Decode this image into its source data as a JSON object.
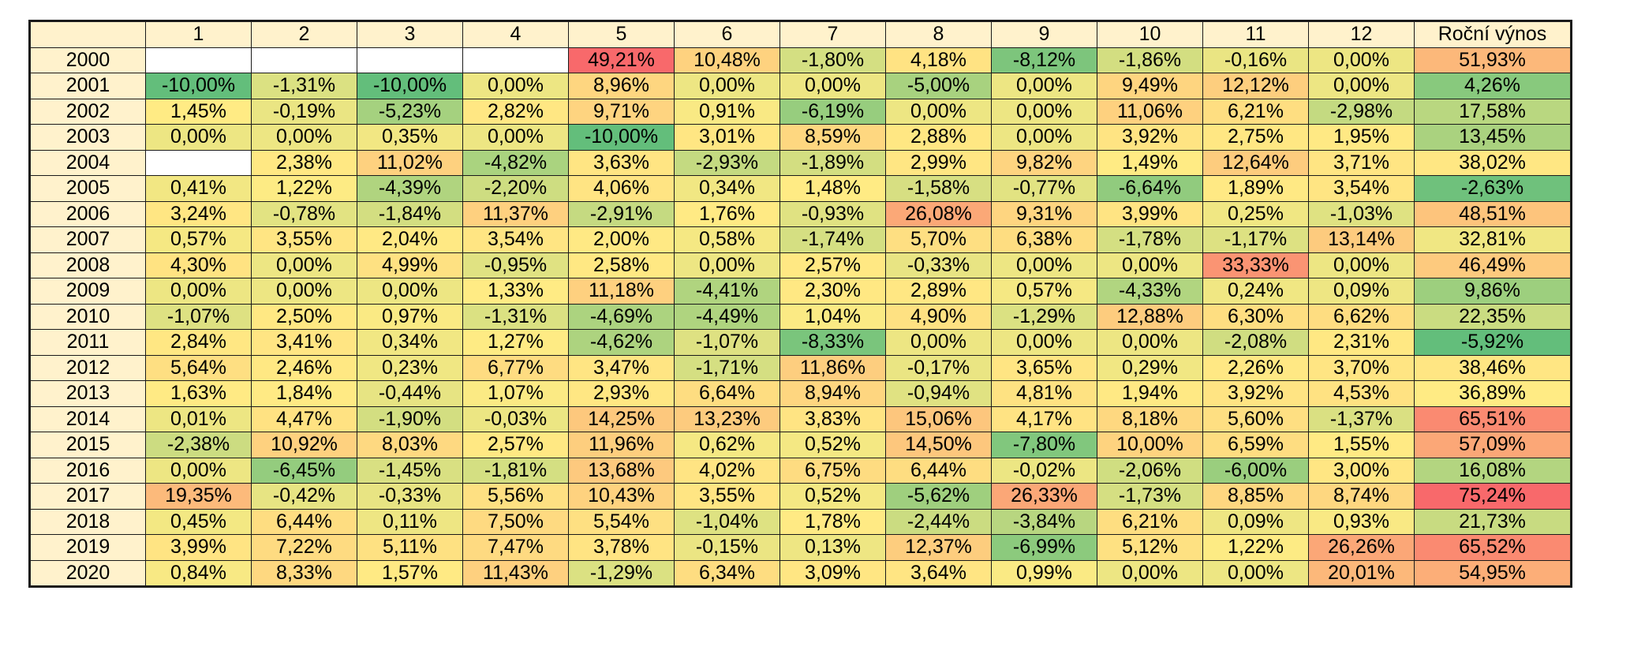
{
  "chart_data": {
    "type": "heatmap",
    "columns": [
      "",
      "1",
      "2",
      "3",
      "4",
      "5",
      "6",
      "7",
      "8",
      "9",
      "10",
      "11",
      "12",
      "Roční výnos"
    ],
    "rows": [
      {
        "year": "2000",
        "values": [
          null,
          null,
          null,
          null,
          "49,21%",
          "10,48%",
          "-1,80%",
          "4,18%",
          "-8,12%",
          "-1,86%",
          "-0,16%",
          "0,00%"
        ],
        "total": "51,93%"
      },
      {
        "year": "2001",
        "values": [
          "-10,00%",
          "-1,31%",
          "-10,00%",
          "0,00%",
          "8,96%",
          "0,00%",
          "0,00%",
          "-5,00%",
          "0,00%",
          "9,49%",
          "12,12%",
          "0,00%"
        ],
        "total": "4,26%"
      },
      {
        "year": "2002",
        "values": [
          "1,45%",
          "-0,19%",
          "-5,23%",
          "2,82%",
          "9,71%",
          "0,91%",
          "-6,19%",
          "0,00%",
          "0,00%",
          "11,06%",
          "6,21%",
          "-2,98%"
        ],
        "total": "17,58%"
      },
      {
        "year": "2003",
        "values": [
          "0,00%",
          "0,00%",
          "0,35%",
          "0,00%",
          "-10,00%",
          "3,01%",
          "8,59%",
          "2,88%",
          "0,00%",
          "3,92%",
          "2,75%",
          "1,95%"
        ],
        "total": "13,45%"
      },
      {
        "year": "2004",
        "values": [
          null,
          "2,38%",
          "11,02%",
          "-4,82%",
          "3,63%",
          "-2,93%",
          "-1,89%",
          "2,99%",
          "9,82%",
          "1,49%",
          "12,64%",
          "3,71%"
        ],
        "total": "38,02%"
      },
      {
        "year": "2005",
        "values": [
          "0,41%",
          "1,22%",
          "-4,39%",
          "-2,20%",
          "4,06%",
          "0,34%",
          "1,48%",
          "-1,58%",
          "-0,77%",
          "-6,64%",
          "1,89%",
          "3,54%"
        ],
        "total": "-2,63%"
      },
      {
        "year": "2006",
        "values": [
          "3,24%",
          "-0,78%",
          "-1,84%",
          "11,37%",
          "-2,91%",
          "1,76%",
          "-0,93%",
          "26,08%",
          "9,31%",
          "3,99%",
          "0,25%",
          "-1,03%"
        ],
        "total": "48,51%"
      },
      {
        "year": "2007",
        "values": [
          "0,57%",
          "3,55%",
          "2,04%",
          "3,54%",
          "2,00%",
          "0,58%",
          "-1,74%",
          "5,70%",
          "6,38%",
          "-1,78%",
          "-1,17%",
          "13,14%"
        ],
        "total": "32,81%"
      },
      {
        "year": "2008",
        "values": [
          "4,30%",
          "0,00%",
          "4,99%",
          "-0,95%",
          "2,58%",
          "0,00%",
          "2,57%",
          "-0,33%",
          "0,00%",
          "0,00%",
          "33,33%",
          "0,00%"
        ],
        "total": "46,49%"
      },
      {
        "year": "2009",
        "values": [
          "0,00%",
          "0,00%",
          "0,00%",
          "1,33%",
          "11,18%",
          "-4,41%",
          "2,30%",
          "2,89%",
          "0,57%",
          "-4,33%",
          "0,24%",
          "0,09%"
        ],
        "total": "9,86%"
      },
      {
        "year": "2010",
        "values": [
          "-1,07%",
          "2,50%",
          "0,97%",
          "-1,31%",
          "-4,69%",
          "-4,49%",
          "1,04%",
          "4,90%",
          "-1,29%",
          "12,88%",
          "6,30%",
          "6,62%"
        ],
        "total": "22,35%"
      },
      {
        "year": "2011",
        "values": [
          "2,84%",
          "3,41%",
          "0,34%",
          "1,27%",
          "-4,62%",
          "-1,07%",
          "-8,33%",
          "0,00%",
          "0,00%",
          "0,00%",
          "-2,08%",
          "2,31%"
        ],
        "total": "-5,92%"
      },
      {
        "year": "2012",
        "values": [
          "5,64%",
          "2,46%",
          "0,23%",
          "6,77%",
          "3,47%",
          "-1,71%",
          "11,86%",
          "-0,17%",
          "3,65%",
          "0,29%",
          "2,26%",
          "3,70%"
        ],
        "total": "38,46%"
      },
      {
        "year": "2013",
        "values": [
          "1,63%",
          "1,84%",
          "-0,44%",
          "1,07%",
          "2,93%",
          "6,64%",
          "8,94%",
          "-0,94%",
          "4,81%",
          "1,94%",
          "3,92%",
          "4,53%"
        ],
        "total": "36,89%"
      },
      {
        "year": "2014",
        "values": [
          "0,01%",
          "4,47%",
          "-1,90%",
          "-0,03%",
          "14,25%",
          "13,23%",
          "3,83%",
          "15,06%",
          "4,17%",
          "8,18%",
          "5,60%",
          "-1,37%"
        ],
        "total": "65,51%"
      },
      {
        "year": "2015",
        "values": [
          "-2,38%",
          "10,92%",
          "8,03%",
          "2,57%",
          "11,96%",
          "0,62%",
          "0,52%",
          "14,50%",
          "-7,80%",
          "10,00%",
          "6,59%",
          "1,55%"
        ],
        "total": "57,09%"
      },
      {
        "year": "2016",
        "values": [
          "0,00%",
          "-6,45%",
          "-1,45%",
          "-1,81%",
          "13,68%",
          "4,02%",
          "6,75%",
          "6,44%",
          "-0,02%",
          "-2,06%",
          "-6,00%",
          "3,00%"
        ],
        "total": "16,08%"
      },
      {
        "year": "2017",
        "values": [
          "19,35%",
          "-0,42%",
          "-0,33%",
          "5,56%",
          "10,43%",
          "3,55%",
          "0,52%",
          "-5,62%",
          "26,33%",
          "-1,73%",
          "8,85%",
          "8,74%"
        ],
        "total": "75,24%"
      },
      {
        "year": "2018",
        "values": [
          "0,45%",
          "6,44%",
          "0,11%",
          "7,50%",
          "5,54%",
          "-1,04%",
          "1,78%",
          "-2,44%",
          "-3,84%",
          "6,21%",
          "0,09%",
          "0,93%"
        ],
        "total": "21,73%"
      },
      {
        "year": "2019",
        "values": [
          "3,99%",
          "7,22%",
          "5,11%",
          "7,47%",
          "3,78%",
          "-0,15%",
          "0,13%",
          "12,37%",
          "-6,99%",
          "5,12%",
          "1,22%",
          "26,26%"
        ],
        "total": "65,52%"
      },
      {
        "year": "2020",
        "values": [
          "0,84%",
          "8,33%",
          "1,57%",
          "11,43%",
          "-1,29%",
          "6,34%",
          "3,09%",
          "3,64%",
          "0,99%",
          "0,00%",
          "0,00%",
          "20,01%"
        ],
        "total": "54,95%"
      }
    ],
    "colors": {
      "header": "#fff2cc",
      "low": "#63be7b",
      "mid": "#ffeb84",
      "high": "#f8696b",
      "empty": "#ffffff"
    }
  }
}
